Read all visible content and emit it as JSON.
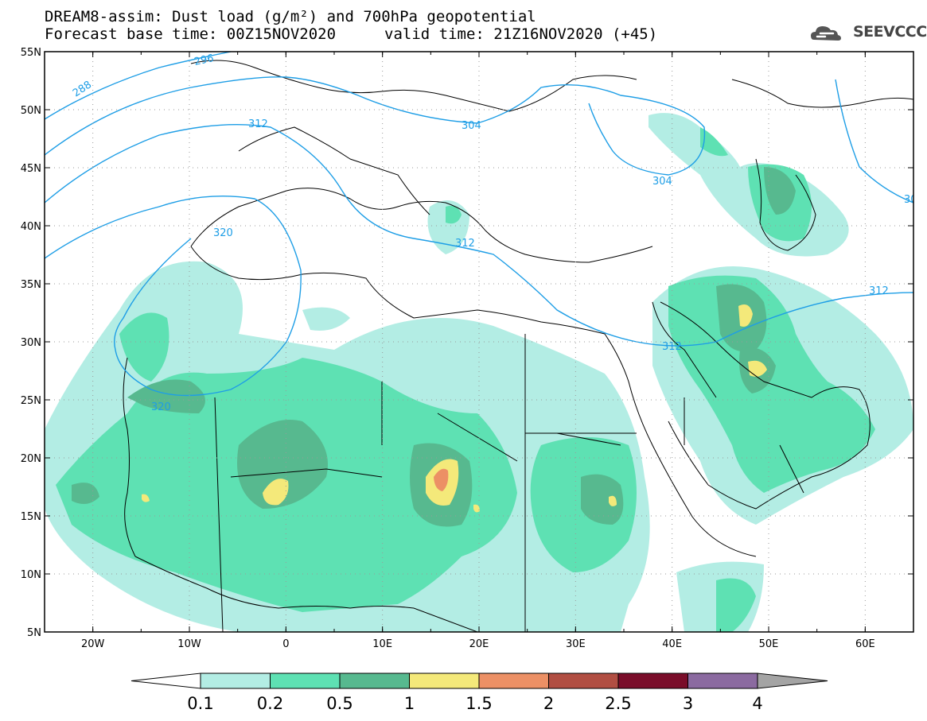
{
  "title": {
    "line1": "DREAM8-assim: Dust load (g/m²) and 700hPa geopotential",
    "line2_left": "Forecast base time: 00Z15NOV2020",
    "line2_right": "valid time: 21Z16NOV2020 (+45)"
  },
  "logo": {
    "text": "SEEVCCC",
    "icon": "cloud-icon"
  },
  "map": {
    "lon_range": [
      -25,
      65
    ],
    "lat_range": [
      5,
      55
    ],
    "lat_labels": [
      "55N",
      "50N",
      "45N",
      "40N",
      "35N",
      "30N",
      "25N",
      "20N",
      "15N",
      "10N",
      "5N"
    ],
    "lat_values": [
      55,
      50,
      45,
      40,
      35,
      30,
      25,
      20,
      15,
      10,
      5
    ],
    "lon_labels": [
      "20W",
      "10W",
      "0",
      "10E",
      "20E",
      "30E",
      "40E",
      "50E",
      "60E"
    ],
    "lon_values": [
      -20,
      -10,
      0,
      10,
      20,
      30,
      40,
      50,
      60
    ],
    "contour_labels": [
      "288",
      "296",
      "304",
      "304",
      "312",
      "312",
      "312",
      "312",
      "320",
      "320",
      "30"
    ]
  },
  "colorbar": {
    "ticks": [
      "0.1",
      "0.2",
      "0.5",
      "1",
      "1.5",
      "2",
      "2.5",
      "3",
      "4"
    ],
    "colors": [
      "#b3ede4",
      "#5ee1b3",
      "#57b98f",
      "#f4e97a",
      "#ec9065",
      "#b14e42",
      "#7a0d2a",
      "#8b6aa0"
    ],
    "end_color_low": "#ffffff",
    "end_color_high": "#a4a4a4"
  },
  "colors": {
    "contour": "#1e9ee6",
    "coast": "#000000"
  }
}
